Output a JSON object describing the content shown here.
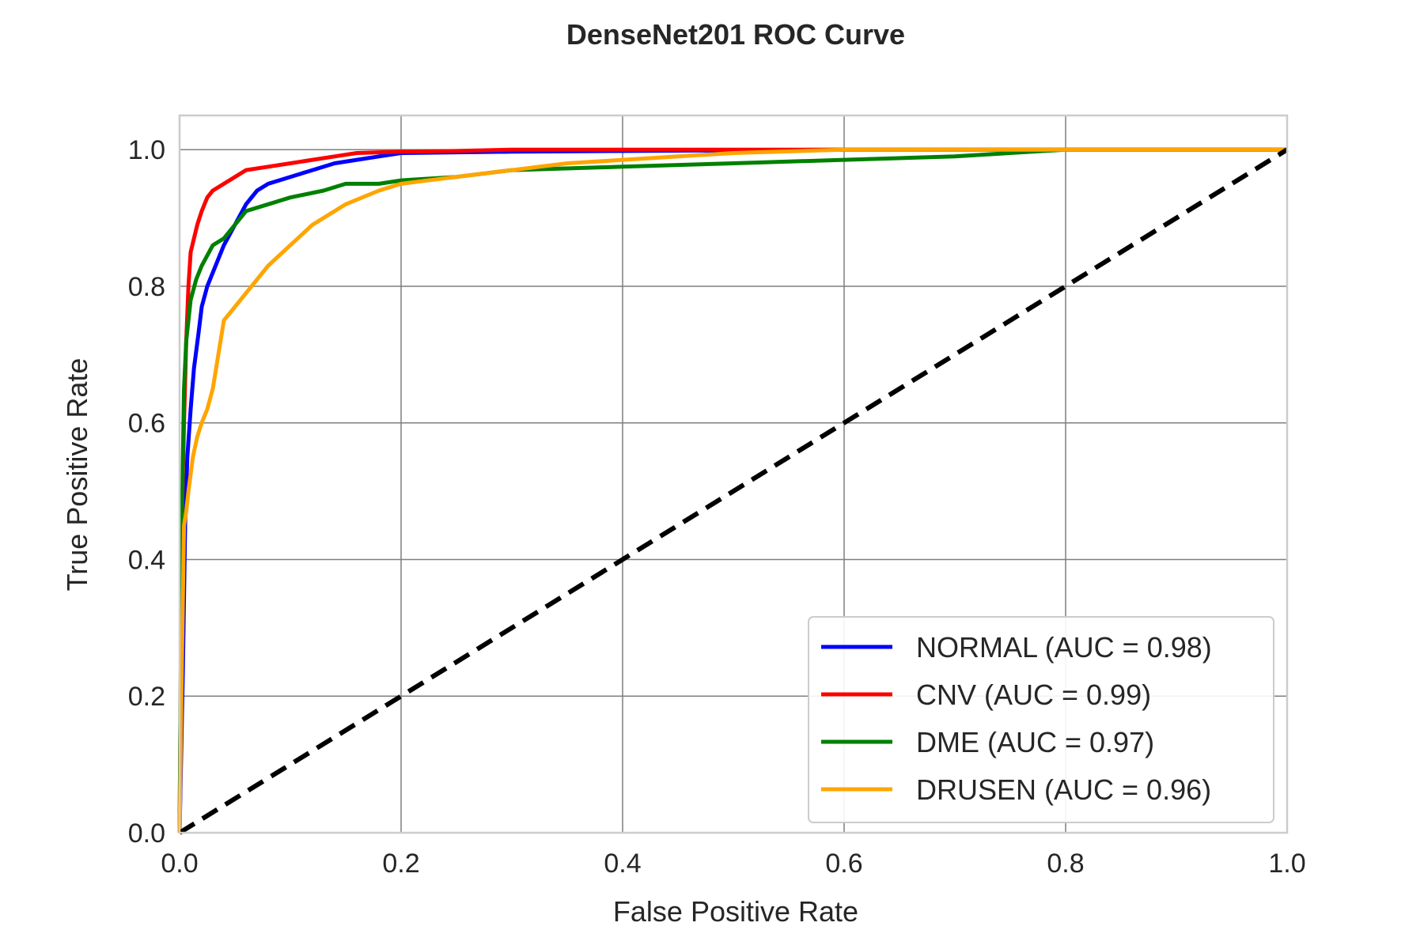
{
  "chart_data": {
    "type": "line",
    "title": "DenseNet201 ROC Curve",
    "xlabel": "False Positive Rate",
    "ylabel": "True Positive Rate",
    "xlim": [
      0.0,
      1.0
    ],
    "ylim": [
      0.0,
      1.05
    ],
    "xticks": [
      "0.0",
      "0.2",
      "0.4",
      "0.6",
      "0.8",
      "1.0"
    ],
    "yticks": [
      "0.0",
      "0.2",
      "0.4",
      "0.6",
      "0.8",
      "1.0"
    ],
    "grid": true,
    "legend_position": "lower-right",
    "series": [
      {
        "name": "NORMAL (AUC = 0.98)",
        "color": "#0000ff",
        "x": [
          0.0,
          0.003,
          0.005,
          0.007,
          0.01,
          0.013,
          0.017,
          0.02,
          0.025,
          0.03,
          0.04,
          0.05,
          0.06,
          0.07,
          0.08,
          0.1,
          0.12,
          0.14,
          0.16,
          0.18,
          0.2,
          0.3,
          0.4,
          0.5,
          0.6,
          0.8,
          1.0
        ],
        "y": [
          0.0,
          0.24,
          0.45,
          0.55,
          0.62,
          0.68,
          0.73,
          0.77,
          0.8,
          0.82,
          0.86,
          0.89,
          0.92,
          0.94,
          0.95,
          0.96,
          0.97,
          0.98,
          0.985,
          0.99,
          0.995,
          0.997,
          0.998,
          0.999,
          1.0,
          1.0,
          1.0
        ]
      },
      {
        "name": "CNV (AUC = 0.99)",
        "color": "#ff0000",
        "x": [
          0.0,
          0.002,
          0.004,
          0.006,
          0.008,
          0.01,
          0.013,
          0.016,
          0.02,
          0.025,
          0.03,
          0.04,
          0.05,
          0.06,
          0.08,
          0.1,
          0.12,
          0.14,
          0.16,
          0.2,
          0.25,
          0.3,
          0.4,
          0.5,
          0.67,
          1.0
        ],
        "y": [
          0.0,
          0.45,
          0.6,
          0.72,
          0.8,
          0.85,
          0.87,
          0.89,
          0.91,
          0.93,
          0.94,
          0.95,
          0.96,
          0.97,
          0.975,
          0.98,
          0.985,
          0.99,
          0.995,
          0.997,
          0.998,
          1.0,
          1.0,
          1.0,
          1.0,
          1.0
        ]
      },
      {
        "name": "DME (AUC = 0.97)",
        "color": "#008000",
        "x": [
          0.0,
          0.002,
          0.004,
          0.006,
          0.008,
          0.01,
          0.015,
          0.02,
          0.03,
          0.04,
          0.05,
          0.06,
          0.08,
          0.1,
          0.13,
          0.15,
          0.18,
          0.2,
          0.25,
          0.3,
          0.4,
          0.5,
          0.6,
          0.7,
          0.8,
          1.0
        ],
        "y": [
          0.0,
          0.45,
          0.65,
          0.72,
          0.75,
          0.78,
          0.81,
          0.83,
          0.86,
          0.87,
          0.89,
          0.91,
          0.92,
          0.93,
          0.94,
          0.95,
          0.95,
          0.955,
          0.96,
          0.97,
          0.975,
          0.98,
          0.985,
          0.99,
          1.0,
          1.0
        ]
      },
      {
        "name": "DRUSEN (AUC = 0.96)",
        "color": "#ffa500",
        "x": [
          0.0,
          0.002,
          0.004,
          0.006,
          0.008,
          0.012,
          0.016,
          0.02,
          0.025,
          0.03,
          0.035,
          0.04,
          0.05,
          0.06,
          0.07,
          0.08,
          0.1,
          0.12,
          0.15,
          0.18,
          0.2,
          0.25,
          0.3,
          0.35,
          0.45,
          0.5,
          0.6,
          0.7,
          0.8,
          1.0
        ],
        "y": [
          0.0,
          0.24,
          0.45,
          0.47,
          0.5,
          0.55,
          0.58,
          0.6,
          0.62,
          0.65,
          0.7,
          0.75,
          0.77,
          0.79,
          0.81,
          0.83,
          0.86,
          0.89,
          0.92,
          0.94,
          0.95,
          0.96,
          0.97,
          0.98,
          0.99,
          0.995,
          1.0,
          1.0,
          1.0,
          1.0
        ]
      },
      {
        "name": "",
        "color": "#000000",
        "dashed": true,
        "x": [
          0.0,
          1.0
        ],
        "y": [
          0.0,
          1.0
        ]
      }
    ]
  }
}
